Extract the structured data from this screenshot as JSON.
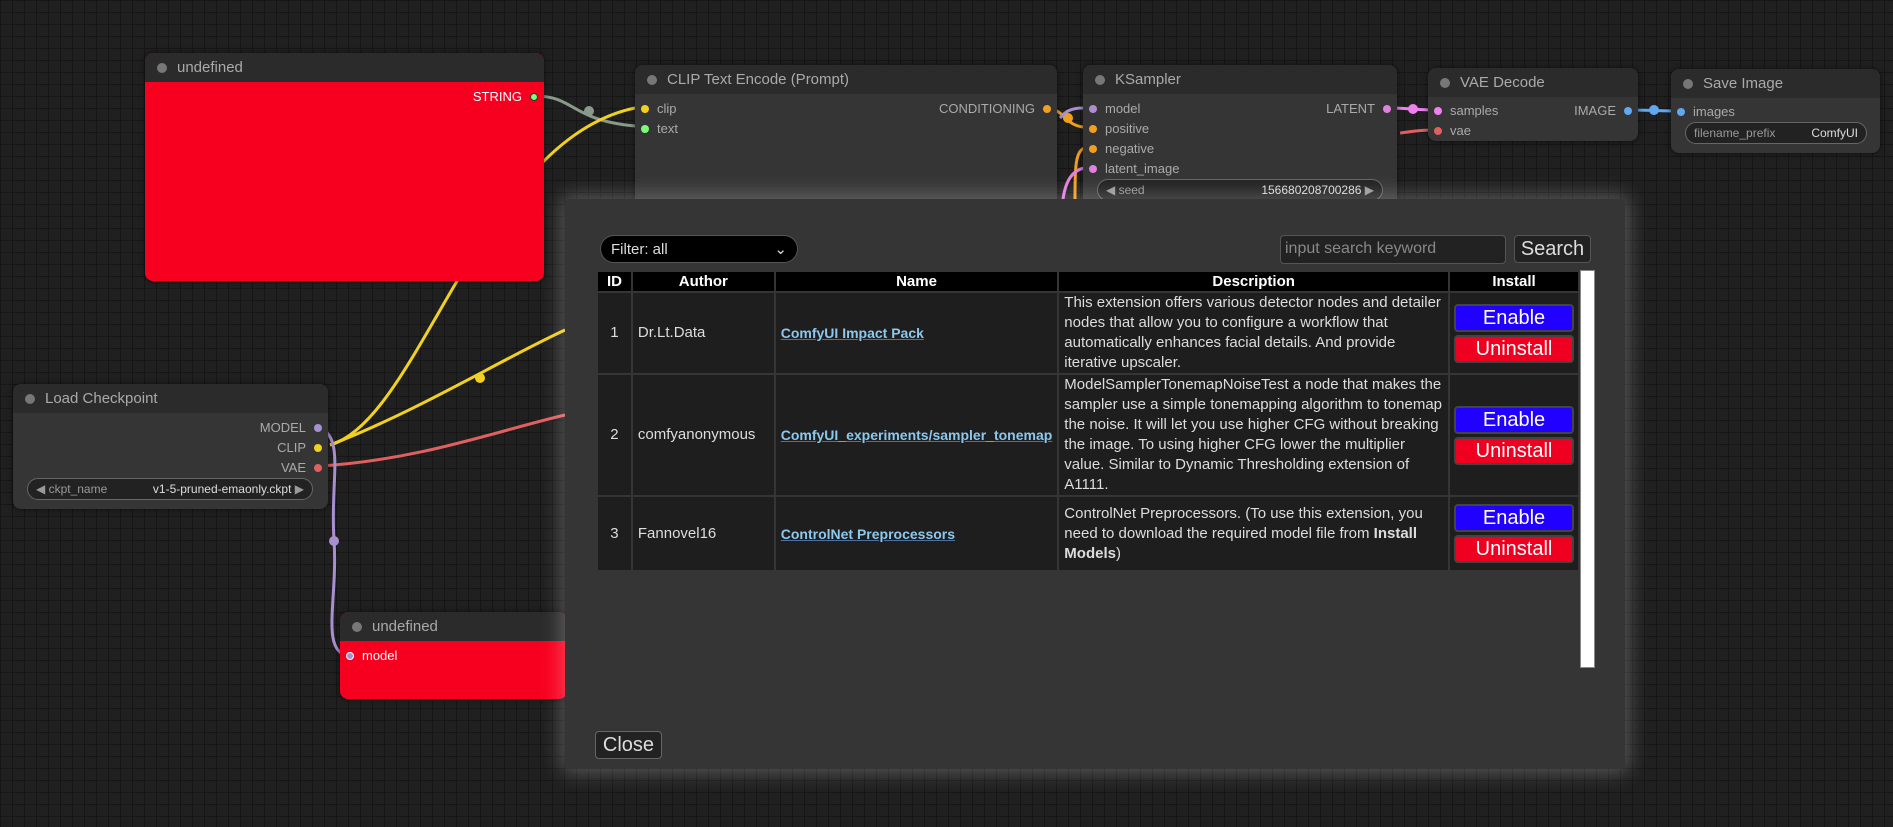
{
  "nodes": {
    "undefined1": {
      "title": "undefined",
      "out": "STRING"
    },
    "clip": {
      "title": "CLIP Text Encode (Prompt)",
      "in": [
        "clip",
        "text"
      ],
      "out": "CONDITIONING"
    },
    "ksampler": {
      "title": "KSampler",
      "in": [
        "model",
        "positive",
        "negative",
        "latent_image"
      ],
      "out": "LATENT",
      "seed_label": "seed",
      "seed_value": "156680208700286"
    },
    "vae": {
      "title": "VAE Decode",
      "in": [
        "samples",
        "vae"
      ],
      "out": "IMAGE"
    },
    "save": {
      "title": "Save Image",
      "in": [
        "images"
      ],
      "prefix_label": "filename_prefix",
      "prefix_value": "ComfyUI"
    },
    "ckpt": {
      "title": "Load Checkpoint",
      "out": [
        "MODEL",
        "CLIP",
        "VAE"
      ],
      "ckpt_label": "ckpt_name",
      "ckpt_value": "v1-5-pruned-emaonly.ckpt"
    },
    "undefined2": {
      "title": "undefined",
      "in": "model"
    }
  },
  "dialog": {
    "filter": "Filter: all",
    "search_placeholder": "input search keyword",
    "search_label": "Search",
    "close_label": "Close",
    "headers": [
      "ID",
      "Author",
      "Name",
      "Description",
      "Install"
    ],
    "rows": [
      {
        "id": "1",
        "author": "Dr.Lt.Data",
        "name": "ComfyUI Impact Pack",
        "desc": "This extension offers various detector nodes and detailer nodes that allow you to configure a workflow that automatically enhances facial details. And provide iterative upscaler.",
        "enable": "Enable",
        "uninstall": "Uninstall"
      },
      {
        "id": "2",
        "author": "comfyanonymous",
        "name": "ComfyUI_experiments/sampler_tonemap",
        "desc": "ModelSamplerTonemapNoiseTest a node that makes the sampler use a simple tonemapping algorithm to tonemap the noise. It will let you use higher CFG without breaking the image. To using higher CFG lower the multiplier value. Similar to Dynamic Thresholding extension of A1111.",
        "enable": "Enable",
        "uninstall": "Uninstall"
      },
      {
        "id": "3",
        "author": "Fannovel16",
        "name": "ControlNet Preprocessors",
        "desc": "ControlNet Preprocessors. (To use this extension, you need to download the required model file from ",
        "desc_bold": "Install Models",
        "desc_end": ")",
        "enable": "Enable",
        "uninstall": "Uninstall"
      }
    ]
  },
  "colors": {
    "node_red": "#f70020",
    "enable": "#2200ff",
    "uninstall": "#f00020",
    "link": "#8cc8ee"
  }
}
